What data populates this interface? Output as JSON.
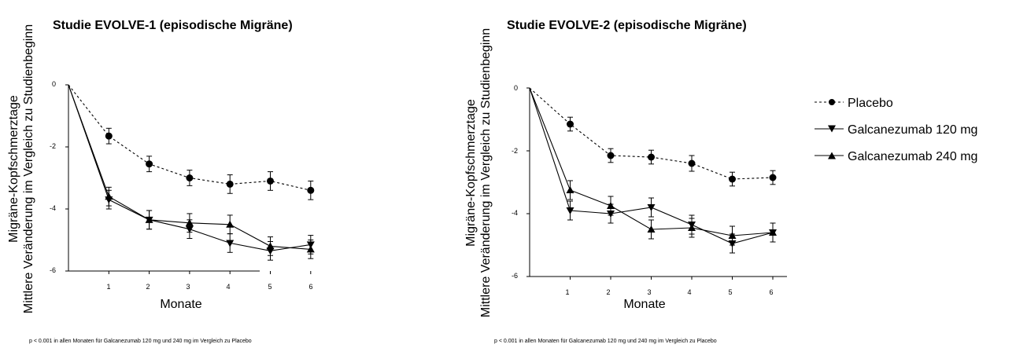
{
  "legend": {
    "placement": "right",
    "items": [
      {
        "label": "Placebo",
        "marker": "circle",
        "dash": "dashed"
      },
      {
        "label": "Galcanezumab 120 mg",
        "marker": "triangle-down",
        "dash": "solid"
      },
      {
        "label": "Galcanezumab 240 mg",
        "marker": "triangle-up",
        "dash": "solid"
      }
    ]
  },
  "colors": {
    "line": "#000000",
    "background": "#ffffff"
  },
  "chart_data": [
    {
      "type": "line",
      "title": "Studie EVOLVE-1 (episodische Migräne)",
      "xlabel": "Monate",
      "ylabel_line1": "Migräne-Kopfschmerztage",
      "ylabel_line2": "Mittlere Veränderung im Vergleich zu Studienbeginn",
      "footnote": "p < 0.001 in allen Monaten für Galcanezumab 120 mg und 240 mg im Vergleich zu Placebo",
      "x": [
        0,
        1,
        2,
        3,
        4,
        5,
        6
      ],
      "xticks": [
        "1",
        "2",
        "3",
        "4",
        "5",
        "6"
      ],
      "yticks": [
        "0",
        "-2",
        "-4",
        "-6"
      ],
      "xlim": [
        0,
        6.5
      ],
      "ylim": [
        -6,
        0
      ],
      "grid": false,
      "series": [
        {
          "name": "Placebo",
          "values": [
            0,
            -1.65,
            -2.55,
            -3.0,
            -3.2,
            -3.1,
            -3.4
          ],
          "errors": [
            0,
            0.25,
            0.25,
            0.25,
            0.3,
            0.3,
            0.3
          ]
        },
        {
          "name": "Galcanezumab 120 mg",
          "values": [
            0,
            -3.7,
            -4.35,
            -4.65,
            -5.1,
            -5.35,
            -5.15
          ],
          "errors": [
            0,
            0.3,
            0.3,
            0.3,
            0.3,
            0.3,
            0.3
          ]
        },
        {
          "name": "Galcanezumab 240 mg",
          "values": [
            0,
            -3.6,
            -4.35,
            -4.45,
            -4.5,
            -5.2,
            -5.3
          ],
          "errors": [
            0,
            0.3,
            0.3,
            0.3,
            0.3,
            0.3,
            0.3
          ]
        }
      ]
    },
    {
      "type": "line",
      "title": "Studie EVOLVE-2 (episodische Migräne)",
      "xlabel": "Monate",
      "ylabel_line1": "Migräne-Kopfschmerztage",
      "ylabel_line2": "Mittlere Veränderung im Vergleich zu Studienbeginn",
      "footnote": "p < 0.001 in allen Monaten für Galcanezumab 120 mg und 240 mg im Vergleich zu Placebo",
      "x": [
        0,
        1,
        2,
        3,
        4,
        5,
        6
      ],
      "xticks": [
        "1",
        "2",
        "3",
        "4",
        "5",
        "6"
      ],
      "yticks": [
        "0",
        "-2",
        "-4",
        "-6"
      ],
      "xlim": [
        0,
        6.5
      ],
      "ylim": [
        -6,
        0
      ],
      "grid": false,
      "series": [
        {
          "name": "Placebo",
          "values": [
            0,
            -1.15,
            -2.15,
            -2.2,
            -2.4,
            -2.9,
            -2.85
          ],
          "errors": [
            0,
            0.22,
            0.22,
            0.22,
            0.25,
            0.22,
            0.22
          ]
        },
        {
          "name": "Galcanezumab 120 mg",
          "values": [
            0,
            -3.9,
            -4.0,
            -3.8,
            -4.35,
            -4.95,
            -4.6
          ],
          "errors": [
            0,
            0.3,
            0.3,
            0.3,
            0.3,
            0.3,
            0.3
          ]
        },
        {
          "name": "Galcanezumab 240 mg",
          "values": [
            0,
            -3.25,
            -3.75,
            -4.5,
            -4.45,
            -4.7,
            -4.6
          ],
          "errors": [
            0,
            0.3,
            0.3,
            0.3,
            0.3,
            0.3,
            0.3
          ]
        }
      ]
    }
  ]
}
